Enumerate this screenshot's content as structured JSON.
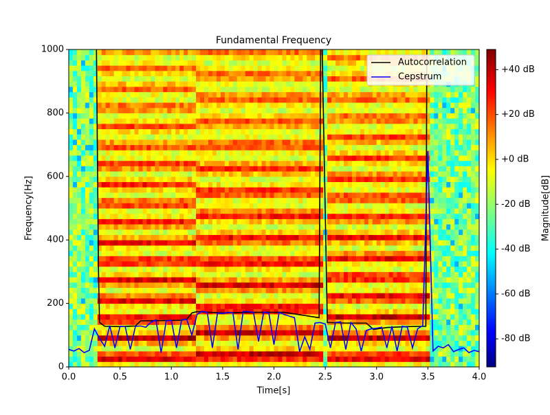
{
  "chart_data": {
    "type": "line",
    "title": "Fundamental Frequency",
    "xlabel": "Time[s]",
    "ylabel": "Frequency[Hz]",
    "colorbar_label": "Magnitude[dB]",
    "xlim": [
      0,
      4
    ],
    "ylim": [
      0,
      1000
    ],
    "xticks": [
      {
        "value": 0,
        "label": "0.0"
      },
      0.5,
      {
        "value": 1,
        "label": "1.0"
      },
      1.5,
      {
        "value": 2,
        "label": "2.0"
      },
      2.5,
      {
        "value": 3,
        "label": "3.0"
      },
      3.5,
      {
        "value": 4,
        "label": "4.0"
      }
    ],
    "yticks": [
      0,
      200,
      400,
      600,
      800,
      1000
    ],
    "clim": [
      -92.5,
      49
    ],
    "cticks": [
      {
        "value": 40,
        "label": "+40 dB"
      },
      {
        "value": 20,
        "label": "+20 dB"
      },
      {
        "value": 0,
        "label": "+0 dB"
      },
      {
        "value": -20,
        "label": "-20 dB"
      },
      {
        "value": -40,
        "label": "-40 dB"
      },
      {
        "value": -60,
        "label": "-60 dB"
      },
      {
        "value": -80,
        "label": "-80 dB"
      }
    ],
    "legend": "upper right",
    "series": [
      {
        "name": "Autocorrelation",
        "color": "#000000",
        "x": [
          0.27,
          0.29,
          0.3,
          0.35,
          0.5,
          0.65,
          0.7,
          0.9,
          1.1,
          1.15,
          1.2,
          1.25,
          1.5,
          1.8,
          2.1,
          2.44,
          2.455,
          2.47,
          2.52,
          2.7,
          2.9,
          2.97,
          3.1,
          3.3,
          3.48,
          3.49
        ],
        "values": [
          1000,
          300,
          140,
          128,
          127,
          129,
          145,
          146,
          147,
          150,
          170,
          174,
          170,
          172,
          172,
          155,
          1000,
          1000,
          140,
          138,
          138,
          118,
          124,
          127,
          128,
          1000
        ]
      },
      {
        "name": "Cepstrum",
        "color": "#0000ff",
        "x": [
          0,
          0.05,
          0.1,
          0.15,
          0.2,
          0.25,
          0.3,
          0.35,
          0.4,
          0.45,
          0.5,
          0.55,
          0.6,
          0.65,
          0.7,
          0.75,
          0.8,
          0.85,
          0.9,
          0.95,
          1,
          1.05,
          1.1,
          1.15,
          1.2,
          1.25,
          1.3,
          1.35,
          1.4,
          1.45,
          1.5,
          1.55,
          1.6,
          1.65,
          1.7,
          1.75,
          1.8,
          1.85,
          1.9,
          1.95,
          2,
          2.05,
          2.1,
          2.15,
          2.2,
          2.25,
          2.3,
          2.35,
          2.4,
          2.45,
          2.5,
          2.55,
          2.6,
          2.65,
          2.7,
          2.75,
          2.8,
          2.85,
          2.9,
          2.95,
          3,
          3.05,
          3.1,
          3.15,
          3.2,
          3.25,
          3.3,
          3.35,
          3.4,
          3.45,
          3.5,
          3.55,
          3.6,
          3.65,
          3.7,
          3.75,
          3.8,
          3.85,
          3.9,
          3.95,
          4
        ],
        "values": [
          55,
          50,
          58,
          45,
          52,
          120,
          90,
          65,
          130,
          60,
          128,
          127,
          55,
          128,
          129,
          125,
          140,
          148,
          45,
          145,
          147,
          60,
          148,
          150,
          100,
          165,
          175,
          172,
          60,
          170,
          168,
          172,
          170,
          55,
          175,
          174,
          172,
          80,
          173,
          170,
          70,
          172,
          165,
          160,
          155,
          48,
          95,
          55,
          138,
          140,
          135,
          60,
          140,
          142,
          55,
          140,
          120,
          50,
          115,
          120,
          122,
          125,
          60,
          128,
          50,
          128,
          125,
          60,
          120,
          130,
          680,
          50,
          65,
          60,
          70,
          48,
          55,
          60,
          45,
          52,
          48
        ]
      }
    ]
  }
}
